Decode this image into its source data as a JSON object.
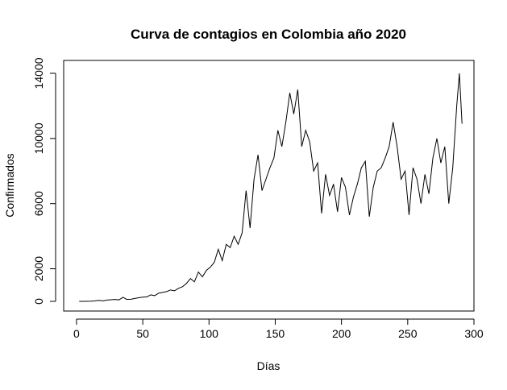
{
  "chart_data": {
    "type": "line",
    "title": "Curva de contagios en Colombia año 2020",
    "x_label": "Días",
    "y_label": "Confirmados",
    "x": [
      2,
      5,
      8,
      11,
      14,
      17,
      20,
      23,
      26,
      29,
      32,
      35,
      38,
      41,
      44,
      47,
      50,
      53,
      56,
      59,
      62,
      65,
      68,
      71,
      74,
      77,
      80,
      83,
      86,
      89,
      92,
      95,
      98,
      101,
      104,
      107,
      110,
      113,
      116,
      119,
      122,
      125,
      128,
      131,
      134,
      137,
      140,
      143,
      146,
      149,
      152,
      155,
      158,
      161,
      164,
      167,
      170,
      173,
      176,
      179,
      182,
      185,
      188,
      191,
      194,
      197,
      200,
      203,
      206,
      209,
      212,
      215,
      218,
      221,
      224,
      227,
      230,
      233,
      236,
      239,
      242,
      245,
      248,
      251,
      254,
      257,
      260,
      263,
      266,
      269,
      272,
      275,
      278,
      281,
      284,
      287,
      289,
      291
    ],
    "series": [
      {
        "color": "#000000",
        "values": [
          0,
          1,
          3,
          10,
          30,
          60,
          30,
          80,
          100,
          120,
          90,
          250,
          120,
          130,
          180,
          220,
          260,
          270,
          400,
          350,
          500,
          550,
          600,
          700,
          650,
          800,
          900,
          1100,
          1400,
          1200,
          1800,
          1500,
          1900,
          2100,
          2400,
          3200,
          2500,
          3500,
          3300,
          4000,
          3500,
          4200,
          6800,
          4500,
          7500,
          9000,
          6800,
          7500,
          8200,
          8800,
          10500,
          9500,
          11000,
          12800,
          11500,
          13000,
          9500,
          10500,
          9800,
          8000,
          8500,
          5400,
          7800,
          6500,
          7200,
          5500,
          7600,
          7000,
          5300,
          6400,
          7200,
          8200,
          8600,
          5200,
          7000,
          8000,
          8200,
          8800,
          9500,
          11000,
          9500,
          7500,
          8000,
          5300,
          8200,
          7500,
          6000,
          7800,
          6600,
          8800,
          10000,
          8500,
          9500,
          6000,
          8200,
          12000,
          14000,
          10900
        ]
      }
    ],
    "xlim": [
      -9.7,
      300
    ],
    "ylim": [
      -594,
      14790
    ],
    "xticks": [
      0,
      50,
      100,
      150,
      200,
      250,
      300
    ],
    "yticks": [
      0,
      2000,
      6000,
      10000,
      14000
    ]
  }
}
